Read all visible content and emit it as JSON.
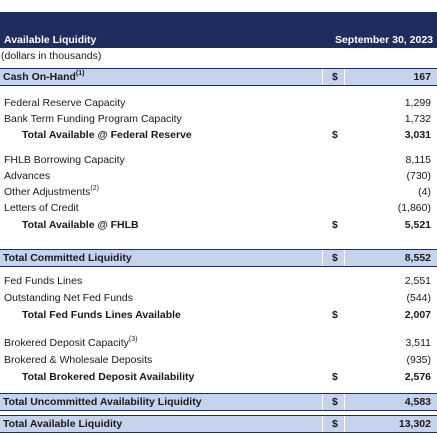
{
  "header": {
    "title": "Available Liquidity",
    "date": "September 30, 2023",
    "units": "(dollars in thousands)"
  },
  "rows": [
    {
      "label": "Cash On-Hand",
      "sup": "(1)",
      "dollar": "$",
      "value": "167"
    },
    {
      "label": "Federal Reserve Capacity",
      "value": "1,299"
    },
    {
      "label": "Bank Term Funding Program Capacity",
      "value": "1,732"
    },
    {
      "label": "Total Available @ Federal Reserve",
      "dollar": "$",
      "value": "3,031"
    },
    {
      "label": "FHLB Borrowing Capacity",
      "value": "8,115"
    },
    {
      "label": "Advances",
      "value": "(730)"
    },
    {
      "label": "Other Adjustments",
      "sup": "(2)",
      "value": "(4)"
    },
    {
      "label": "Letters of Credit",
      "value": "(1,860)"
    },
    {
      "label": "Total Available @ FHLB",
      "dollar": "$",
      "value": "5,521"
    },
    {
      "label": "Total Committed Liquidity",
      "dollar": "$",
      "value": "8,552"
    },
    {
      "label": "Fed Funds Lines",
      "value": "2,551"
    },
    {
      "label": "Outstanding Net Fed Funds",
      "value": "(544)"
    },
    {
      "label": "Total Fed Funds Lines Available",
      "dollar": "$",
      "value": "2,007"
    },
    {
      "label": "Brokered Deposit Capacity",
      "sup": "(3)",
      "value": "3,511"
    },
    {
      "label": "Brokered & Wholesale Deposits",
      "value": "(935)"
    },
    {
      "label": "Total Brokered Deposit Availability",
      "dollar": "$",
      "value": "2,576"
    },
    {
      "label": "Total Uncommitted Availability Liquidity",
      "dollar": "$",
      "value": "4,583"
    },
    {
      "label": "Total Available Liquidity",
      "dollar": "$",
      "value": "13,302"
    }
  ]
}
